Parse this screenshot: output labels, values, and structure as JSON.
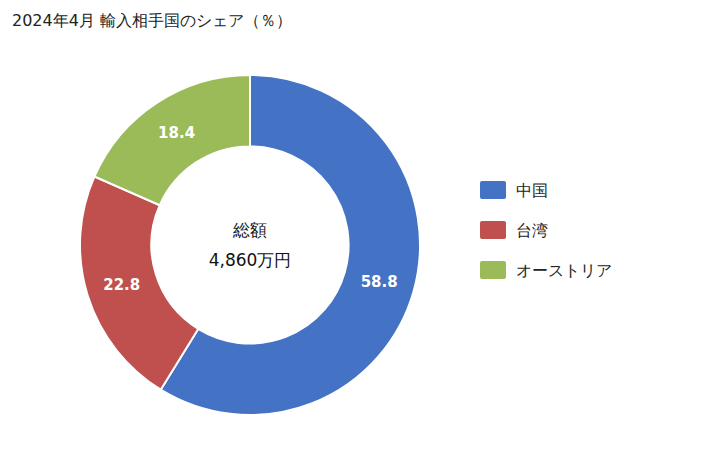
{
  "chart_data": {
    "type": "donut",
    "title": "2024年4月 輸入相手国のシェア（％）",
    "categories": [
      "中国",
      "台湾",
      "オーストリア"
    ],
    "values": [
      58.8,
      22.8,
      18.4
    ],
    "colors": [
      "#4472C4",
      "#C0504D",
      "#9BBB59"
    ],
    "annotations": [
      "総額",
      "4,860万円"
    ],
    "data_labels": true,
    "legend": "right"
  }
}
